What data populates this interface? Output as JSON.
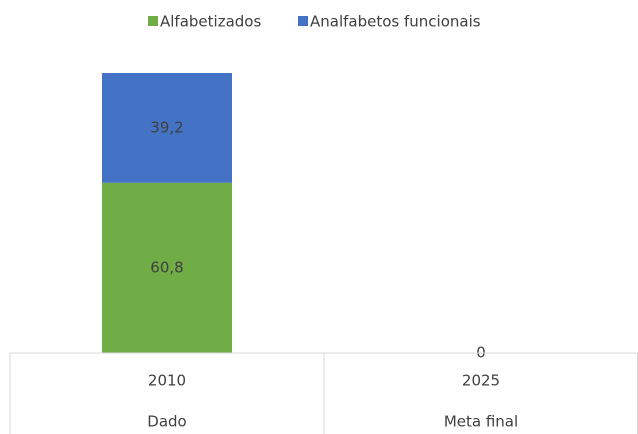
{
  "chart_data": {
    "type": "stacked_bar",
    "categories": [
      "2010",
      "2025"
    ],
    "category_groups": [
      "Dado",
      "Meta final"
    ],
    "series": [
      {
        "name": "Alfabetizados",
        "color": "#70ad47",
        "values": [
          60.8,
          null
        ],
        "value_labels": [
          "60,8",
          null
        ]
      },
      {
        "name": "Analfabetos funcionais",
        "color": "#4472c4",
        "values": [
          39.2,
          0
        ],
        "value_labels": [
          "39,2",
          "0"
        ]
      }
    ],
    "legend": "top"
  }
}
